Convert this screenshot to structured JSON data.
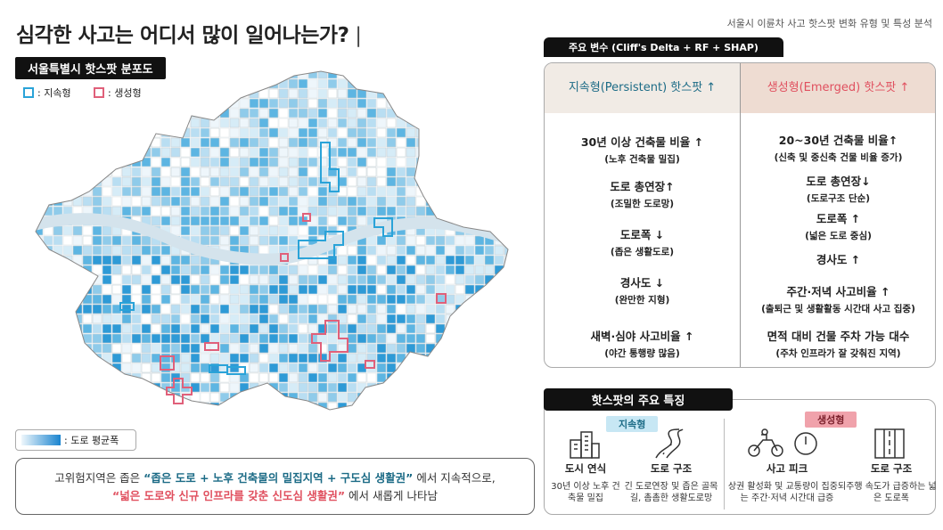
{
  "header": {
    "title": "심각한 사고는 어디서 많이 일어나는가?",
    "source": "서울시 이륜차 사고 핫스팟 변화 유형 및 특성 분석"
  },
  "map": {
    "title": "서울특별시 핫스팟 분포도",
    "legend": [
      ": 지속형",
      ": 생성형"
    ],
    "scale_label": ": 도로 평균폭"
  },
  "summary": {
    "lines": [
      [
        "고위험지역은 좁은 ",
        "“좁은 도로 + 노후 건축물의 밀집지역 + 구도심 생활권”",
        " 에서 지속적으로,"
      ],
      [
        "“넓은 도로와 신규 인프라를 갖춘 신도심 생활권”",
        " 에서 새롭게 나타남"
      ]
    ]
  },
  "variables": {
    "title": "주요 변수 (Cliff's Delta + RF + SHAP)",
    "columns": [
      {
        "header": "지속형(Persistent) 핫스팟 ↑",
        "items": [
          {
            "main": "30년 이상 건축물 비율 ↑",
            "sub": "(노후 건축물 밀집)"
          },
          {
            "main": "도로 총연장↑",
            "sub": "(조밀한 도로망)"
          },
          {
            "main": "도로폭 ↓",
            "sub": "(좁은 생활도로)"
          },
          {
            "main": "경사도 ↓",
            "sub": "(완만한 지형)"
          },
          {
            "main": "새벽·심야 사고비율 ↑",
            "sub": "(야간 통행량 많음)"
          }
        ]
      },
      {
        "header": "생성형(Emerged) 핫스팟 ↑",
        "items": [
          {
            "main": "20~30년 건축물 비율↑",
            "sub": "(신축 및 중신축 건물 비율 증가)"
          },
          {
            "main": "도로 총연장↓",
            "sub": "(도로구조 단순)"
          },
          {
            "main": "도로폭 ↑",
            "sub": "(넓은 도로 중심)"
          },
          {
            "main": "경사도 ↑",
            "sub": null
          },
          {
            "main": "주간·저녁 사고비율 ↑",
            "sub": "(출퇴근 및 생활활동 시간대 사고 집중)"
          },
          {
            "main": "면적 대비 건물 주차 가능 대수",
            "sub": "(주차 인프라가 잘 갖춰진 지역)"
          }
        ]
      }
    ]
  },
  "features": {
    "title": "핫스팟의 주요 특징",
    "groups": [
      {
        "label": "지속형",
        "items": [
          {
            "title": "도시 연식",
            "desc": "30년 이상 노후 건축물 밀집"
          },
          {
            "title": "도로 구조",
            "desc": "긴 도로연장 및 좁은 골목길, 촘촘한 생활도로망"
          }
        ]
      },
      {
        "label": "생성형",
        "items": [
          {
            "title": "사고 피크",
            "desc": "상권 활성화 및 교통량이 집중되는 주간·저녁 시간대 급증"
          },
          {
            "title": "도로 구조",
            "desc": "주행 속도가 급증하는 넓은 도로폭"
          }
        ]
      }
    ]
  }
}
